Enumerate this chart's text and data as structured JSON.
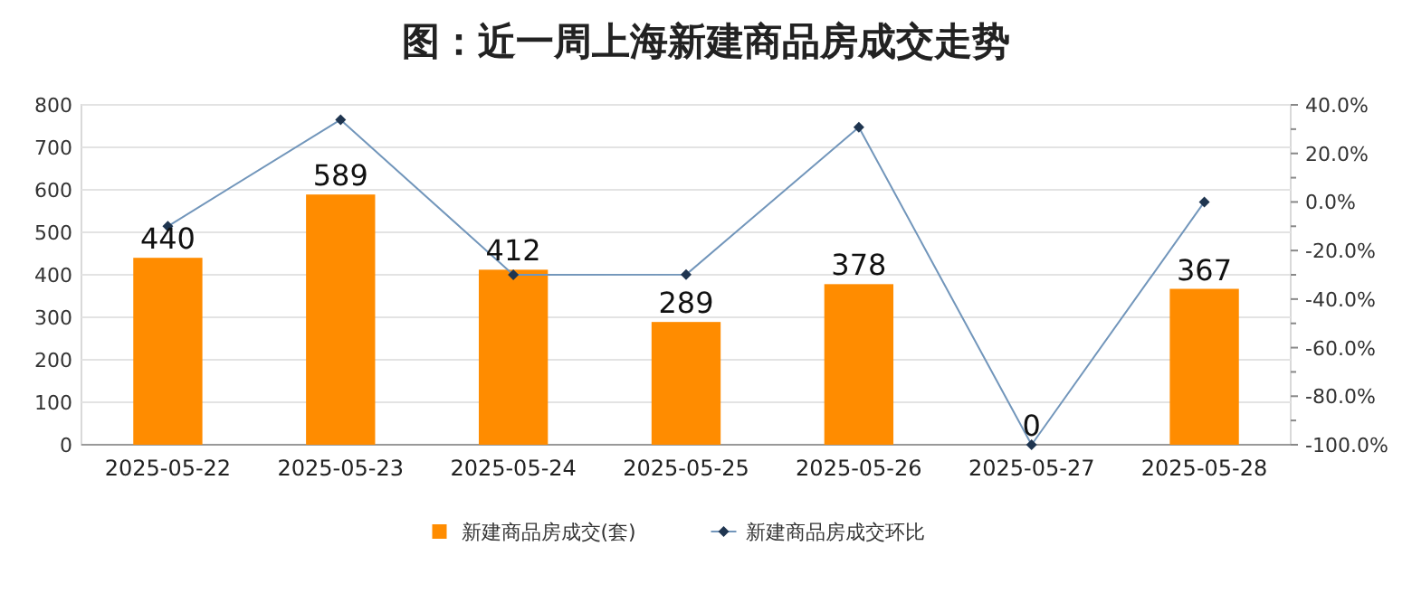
{
  "chart_data": {
    "type": "bar",
    "title": "图：近一周上海新建商品房成交走势",
    "categories": [
      "2025-05-22",
      "2025-05-23",
      "2025-05-24",
      "2025-05-25",
      "2025-05-26",
      "2025-05-27",
      "2025-05-28"
    ],
    "series": [
      {
        "name": "新建商品房成交(套)",
        "color": "#ff8c00",
        "values": [
          440,
          589,
          412,
          289,
          378,
          0,
          367
        ],
        "value_labels": [
          "440",
          "589",
          "412",
          "289",
          "378",
          "0",
          "367"
        ]
      },
      {
        "name": "新建商品房成交环比",
        "type": "line",
        "axis": "y2",
        "color": "#7296bb",
        "marker": "diamond",
        "values": [
          -10,
          33.9,
          -30.0,
          -29.9,
          30.8,
          -100,
          0
        ]
      }
    ],
    "ylim": [
      0,
      800
    ],
    "yticks": [
      0,
      100,
      200,
      300,
      400,
      500,
      600,
      700,
      800
    ],
    "y2lim": [
      -100,
      40
    ],
    "y2ticks": [
      {
        "value": -100,
        "label": "-100.0%"
      },
      {
        "value": -80,
        "label": "-80.0%"
      },
      {
        "value": -60,
        "label": "-60.0%"
      },
      {
        "value": -40,
        "label": "-40.0%"
      },
      {
        "value": -20,
        "label": "-20.0%"
      },
      {
        "value": 0,
        "label": "0.0%"
      },
      {
        "value": 20,
        "label": "20.0%"
      },
      {
        "value": 40,
        "label": "40.0%"
      }
    ],
    "grid": "y",
    "legend": "bottom"
  }
}
